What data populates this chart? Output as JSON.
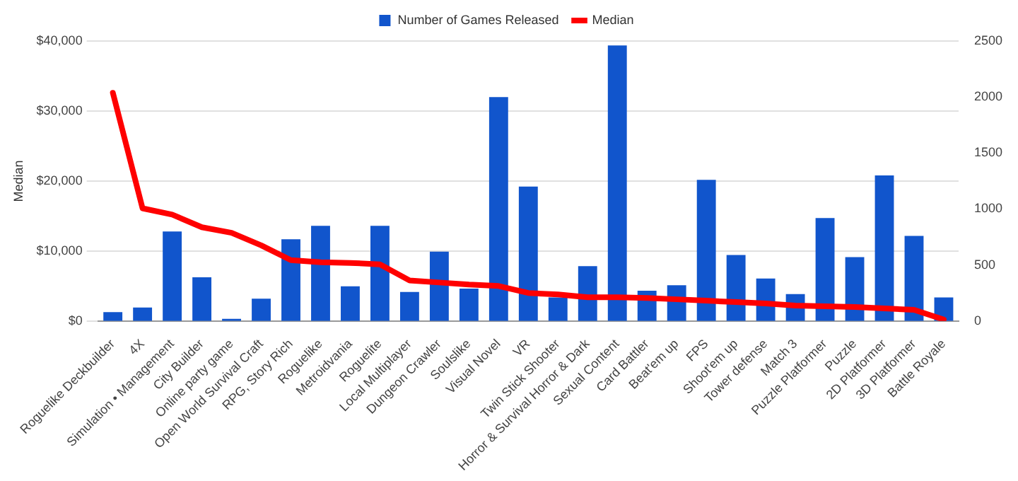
{
  "chart_data": {
    "type": "bar",
    "ylabel": "Median",
    "categories": [
      "Roguelike Deckbuilder",
      "4X",
      "Simulation • Management",
      "City Builder",
      "Online party game",
      "Open World Survival Craft",
      "RPG, Story Rich",
      "Roguelike",
      "Metroidvania",
      "Roguelite",
      "Local Multiplayer",
      "Dungeon Crawler",
      "Soulslike",
      "Visual Novel",
      "VR",
      "Twin Stick Shooter",
      "Horror & Survival Horror & Dark",
      "Sexual Content",
      "Card Battler",
      "Beat'em up",
      "FPS",
      "Shoot'em up",
      "Tower defense",
      "Match 3",
      "Puzzle Platformer",
      "Puzzle",
      "2D Platformer",
      "3D Platformer",
      "Battle Royale"
    ],
    "series": [
      {
        "name": "Number of Games Released",
        "axis": "y2",
        "color": "#1155cc",
        "values": [
          80,
          120,
          800,
          390,
          20,
          200,
          730,
          850,
          310,
          850,
          260,
          620,
          290,
          2000,
          1200,
          210,
          490,
          2460,
          270,
          320,
          1260,
          590,
          380,
          240,
          920,
          570,
          1300,
          760,
          210
        ]
      },
      {
        "name": "Median",
        "type": "line",
        "axis": "y",
        "color": "#ff0000",
        "values": [
          32600,
          16100,
          15200,
          13400,
          12600,
          10800,
          8700,
          8400,
          8300,
          8100,
          5800,
          5500,
          5200,
          5000,
          4000,
          3800,
          3400,
          3400,
          3300,
          3100,
          2900,
          2700,
          2500,
          2200,
          2100,
          2000,
          1800,
          1600,
          200
        ]
      }
    ],
    "ylim": [
      0,
      40000
    ],
    "yticks": [
      {
        "value": 0,
        "label": "$0"
      },
      {
        "value": 10000,
        "label": "$10,000"
      },
      {
        "value": 20000,
        "label": "$20,000"
      },
      {
        "value": 30000,
        "label": "$30,000"
      },
      {
        "value": 40000,
        "label": "$40,000"
      }
    ],
    "y2lim": [
      0,
      2500
    ],
    "y2ticks": [
      0,
      500,
      1000,
      1500,
      2000,
      2500
    ],
    "grid": "y",
    "legend": "top",
    "marker": "none",
    "line_style": "solid"
  }
}
